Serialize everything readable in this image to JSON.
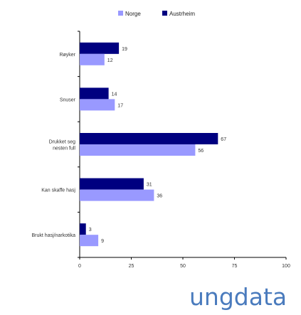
{
  "chart_data": {
    "type": "bar",
    "orientation": "horizontal",
    "categories": [
      "Røyker",
      "Snuser",
      "Drukket seg\nnesten full",
      "Kan skaffe hasj",
      "Brukt hasj/narkotika"
    ],
    "series": [
      {
        "name": "Norge",
        "values": [
          12,
          17,
          56,
          36,
          9
        ],
        "color": "#9999ff"
      },
      {
        "name": "Austrheim",
        "values": [
          19,
          14,
          67,
          31,
          3
        ],
        "color": "#000080"
      }
    ],
    "xlim": [
      0,
      100
    ],
    "xticks": [
      0,
      25,
      50,
      75,
      100
    ],
    "legend_position": "top-center",
    "grid": false
  },
  "brand": {
    "text": "ungdata"
  }
}
